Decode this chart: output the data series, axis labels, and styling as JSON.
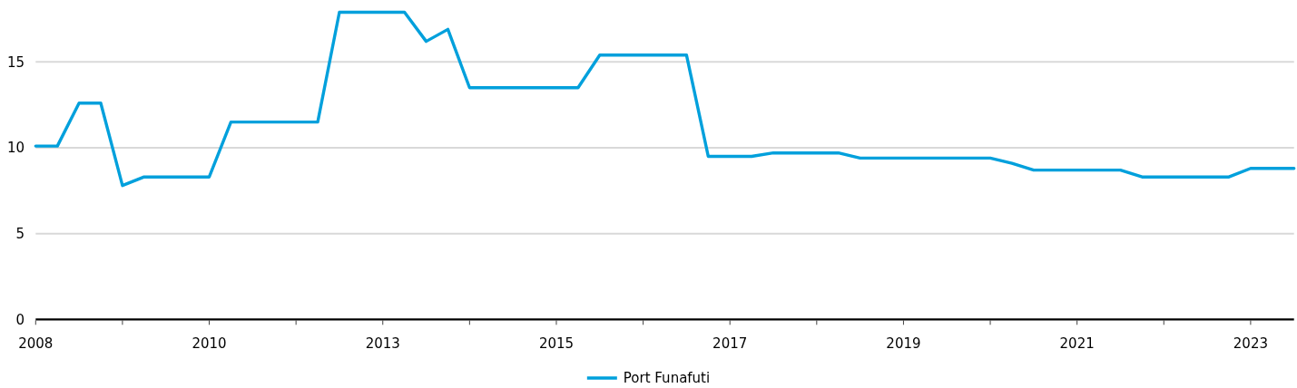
{
  "chart_data": {
    "type": "line",
    "categories": [
      "2008",
      null,
      null,
      null,
      null,
      null,
      null,
      null,
      "2010",
      null,
      null,
      null,
      null,
      null,
      null,
      null,
      "2013",
      null,
      null,
      null,
      null,
      null,
      null,
      null,
      "2015",
      null,
      null,
      null,
      null,
      null,
      null,
      null,
      "2017",
      null,
      null,
      null,
      null,
      null,
      null,
      null,
      "2019",
      null,
      null,
      null,
      null,
      null,
      null,
      null,
      "2021",
      null,
      null,
      null,
      null,
      null,
      null,
      null,
      "2023",
      null,
      null
    ],
    "series": [
      {
        "name": "Port Funafuti",
        "color": "#00a0dc",
        "values": [
          10.1,
          10.1,
          12.6,
          12.6,
          7.8,
          8.3,
          8.3,
          8.3,
          8.3,
          11.5,
          11.5,
          11.5,
          11.5,
          11.5,
          17.9,
          17.9,
          17.9,
          17.9,
          16.2,
          16.9,
          13.5,
          13.5,
          13.5,
          13.5,
          13.5,
          13.5,
          15.4,
          15.4,
          15.4,
          15.4,
          15.4,
          9.5,
          9.5,
          9.5,
          9.7,
          9.7,
          9.7,
          9.7,
          9.4,
          9.4,
          9.4,
          9.4,
          9.4,
          9.4,
          9.4,
          9.1,
          8.7,
          8.7,
          8.7,
          8.7,
          8.7,
          8.3,
          8.3,
          8.3,
          8.3,
          8.3,
          8.8,
          8.8,
          8.8
        ]
      }
    ],
    "ylim": [
      0,
      18.5
    ],
    "yticks": [
      0,
      5,
      10,
      15
    ],
    "grid": "y",
    "legend": "bottom",
    "marker": "none",
    "line_style": "solid"
  }
}
